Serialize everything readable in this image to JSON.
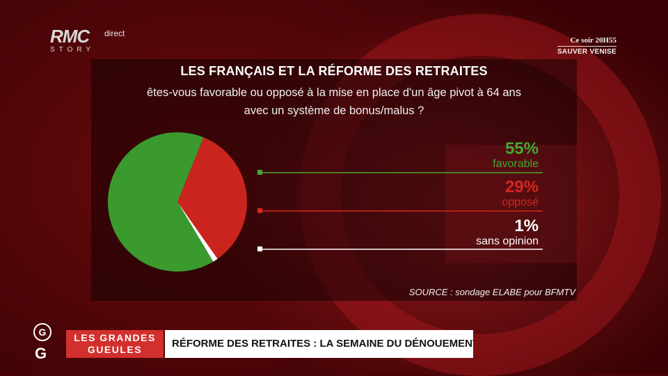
{
  "channel": {
    "logo_main": "RMC",
    "logo_sub": "STORY",
    "live_label": "direct"
  },
  "promo": {
    "line1": "Ce soir 20H55",
    "line2": "SAUVER VENISE"
  },
  "chart_data": {
    "type": "pie",
    "title": "LES FRANÇAIS ET LA RÉFORME DES RETRAITES",
    "subtitle_line1": "êtes-vous favorable ou opposé à la mise en place d'un âge pivot à 64 ans",
    "subtitle_line2": "avec un système de bonus/malus ?",
    "categories": [
      "favorable",
      "opposé",
      "sans opinion"
    ],
    "values": [
      55,
      29,
      1
    ],
    "value_labels": [
      "55%",
      "29%",
      "1%"
    ],
    "colors": [
      "#3a9a2e",
      "#c9251e",
      "#ffffff"
    ],
    "label_colors": [
      "#44a833",
      "#d4261f",
      "#ffffff"
    ],
    "source": "SOURCE : sondage ELABE pour BFMTV"
  },
  "show": {
    "g_top": "G",
    "g_bottom": "G",
    "name_line1": "LES GRANDES",
    "name_line2": "GUEULES",
    "headline": "RÉFORME DES RETRAITES : LA SEMAINE DU DÉNOUEMENT ?"
  }
}
